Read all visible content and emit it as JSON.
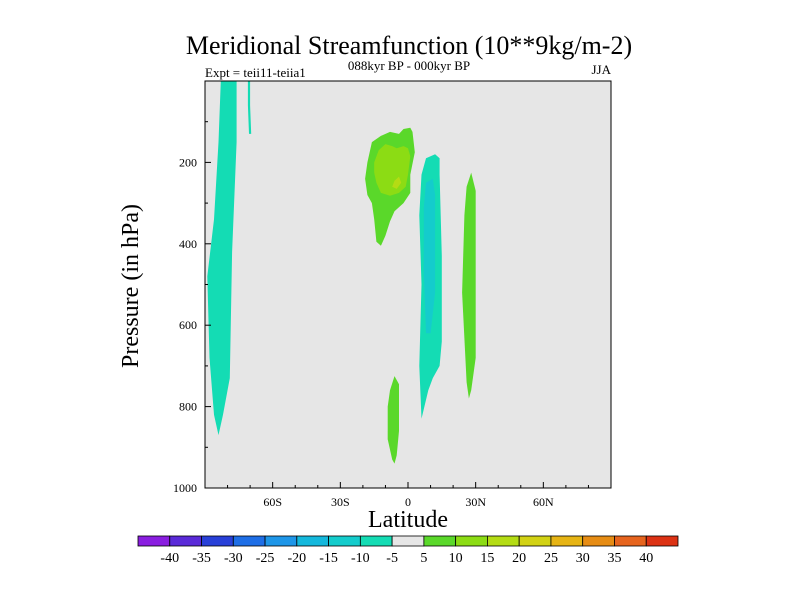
{
  "chart_data": {
    "type": "heatmap",
    "title": "Meridional Streamfunction (10**9kg/m-2)",
    "subtitle_left": "Expt = teii11-teiia1",
    "subtitle_center": "088kyr BP - 000kyr BP",
    "subtitle_right": "JJA",
    "xlabel": "Latitude",
    "ylabel": "Pressure (in hPa)",
    "x_ticks": [
      {
        "value": -60,
        "label": "60S"
      },
      {
        "value": -30,
        "label": "30S"
      },
      {
        "value": 0,
        "label": "0"
      },
      {
        "value": 30,
        "label": "30N"
      },
      {
        "value": 60,
        "label": "60N"
      }
    ],
    "y_ticks": [
      {
        "value": 200,
        "label": "200"
      },
      {
        "value": 400,
        "label": "400"
      },
      {
        "value": 600,
        "label": "600"
      },
      {
        "value": 800,
        "label": "800"
      },
      {
        "value": 1000,
        "label": "1000"
      }
    ],
    "xlim": [
      -90,
      90
    ],
    "ylim": [
      1000,
      0
    ],
    "y_reversed": true,
    "grid": false,
    "background_color": "#e6e6e6",
    "colorbar": {
      "labels": [
        "-40",
        "-35",
        "-30",
        "-25",
        "-20",
        "-15",
        "-10",
        "-5",
        "5",
        "10",
        "15",
        "20",
        "25",
        "30",
        "35",
        "40"
      ],
      "colors": [
        "#8a1ee0",
        "#5a2ad8",
        "#2840d8",
        "#1e6ee6",
        "#1e96e8",
        "#14b8dc",
        "#14cccc",
        "#14dcb4",
        "#e6e6e6",
        "#5ad82a",
        "#8cdc14",
        "#b4dc14",
        "#d2d214",
        "#e6b414",
        "#e68c14",
        "#e6641e",
        "#dc3214"
      ]
    },
    "regions": [
      {
        "name": "southern-cell",
        "level": -5,
        "color": "#14dcb4",
        "polygon": [
          [
            -83,
            0
          ],
          [
            -76,
            0
          ],
          [
            -76,
            150
          ],
          [
            -78,
            420
          ],
          [
            -79,
            730
          ],
          [
            -82,
            820
          ],
          [
            -84,
            870
          ],
          [
            -86,
            820
          ],
          [
            -88,
            680
          ],
          [
            -89,
            480
          ],
          [
            -86,
            340
          ],
          [
            -84,
            150
          ]
        ]
      },
      {
        "name": "southern-strip",
        "level": -5,
        "color": "#14dcb4",
        "polygon": [
          [
            -71,
            0
          ],
          [
            -70,
            0
          ],
          [
            -70,
            60
          ],
          [
            -69.5,
            130
          ],
          [
            -70.5,
            130
          ],
          [
            -71,
            60
          ]
        ]
      },
      {
        "name": "equatorial-cell",
        "level": -5,
        "color": "#14dcb4",
        "polygon": [
          [
            8,
            190
          ],
          [
            12,
            180
          ],
          [
            14,
            190
          ],
          [
            14,
            230
          ],
          [
            15,
            430
          ],
          [
            15,
            640
          ],
          [
            14,
            700
          ],
          [
            11,
            730
          ],
          [
            9,
            760
          ],
          [
            6,
            830
          ],
          [
            5,
            700
          ],
          [
            6,
            500
          ],
          [
            5,
            330
          ],
          [
            6,
            230
          ]
        ]
      },
      {
        "name": "equatorial-core",
        "level": -10,
        "color": "#14cccc",
        "polygon": [
          [
            8,
            250
          ],
          [
            11,
            240
          ],
          [
            12,
            280
          ],
          [
            12,
            430
          ],
          [
            12,
            520
          ],
          [
            10,
            620
          ],
          [
            8,
            620
          ],
          [
            7,
            470
          ],
          [
            7,
            310
          ]
        ]
      },
      {
        "name": "upper-positive",
        "level": 5,
        "color": "#5ad82a",
        "polygon": [
          [
            -18,
            200
          ],
          [
            -16,
            150
          ],
          [
            -12,
            135
          ],
          [
            -8,
            125
          ],
          [
            -4,
            130
          ],
          [
            -2,
            118
          ],
          [
            1,
            115
          ],
          [
            2,
            125
          ],
          [
            3,
            175
          ],
          [
            1,
            230
          ],
          [
            1,
            275
          ],
          [
            -2,
            300
          ],
          [
            -6,
            320
          ],
          [
            -8,
            345
          ],
          [
            -10,
            380
          ],
          [
            -12,
            405
          ],
          [
            -14,
            395
          ],
          [
            -15,
            340
          ],
          [
            -16,
            300
          ],
          [
            -18,
            280
          ],
          [
            -19,
            240
          ]
        ]
      },
      {
        "name": "upper-positive-core",
        "level": 10,
        "color": "#8cdc14",
        "polygon": [
          [
            -15,
            200
          ],
          [
            -13,
            170
          ],
          [
            -10,
            155
          ],
          [
            -7,
            160
          ],
          [
            -5,
            165
          ],
          [
            -2,
            160
          ],
          [
            0,
            165
          ],
          [
            1,
            185
          ],
          [
            0,
            230
          ],
          [
            -1,
            260
          ],
          [
            -4,
            275
          ],
          [
            -8,
            282
          ],
          [
            -12,
            275
          ],
          [
            -14,
            250
          ],
          [
            -15,
            225
          ]
        ]
      },
      {
        "name": "upper-positive-peak",
        "level": 15,
        "color": "#b4dc14",
        "polygon": [
          [
            -6,
            245
          ],
          [
            -4,
            235
          ],
          [
            -3,
            250
          ],
          [
            -5,
            265
          ],
          [
            -7,
            260
          ]
        ]
      },
      {
        "name": "lower-positive",
        "level": 5,
        "color": "#5ad82a",
        "polygon": [
          [
            -8,
            760
          ],
          [
            -6,
            725
          ],
          [
            -4,
            745
          ],
          [
            -4,
            860
          ],
          [
            -5,
            920
          ],
          [
            -6,
            940
          ],
          [
            -7,
            930
          ],
          [
            -9,
            880
          ],
          [
            -9,
            800
          ]
        ]
      },
      {
        "name": "northern-cell",
        "level": 5,
        "color": "#5ad82a",
        "polygon": [
          [
            26,
            260
          ],
          [
            28,
            225
          ],
          [
            30,
            270
          ],
          [
            30,
            540
          ],
          [
            30,
            680
          ],
          [
            28,
            760
          ],
          [
            27,
            780
          ],
          [
            26,
            740
          ],
          [
            24,
            520
          ],
          [
            25,
            330
          ]
        ]
      }
    ]
  }
}
